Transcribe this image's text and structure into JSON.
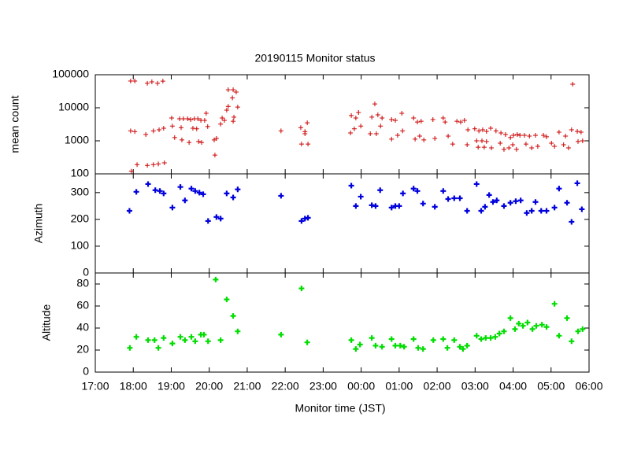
{
  "chart_data": [
    {
      "type": "scatter",
      "title": "20190115 Monitor status",
      "ylabel": "mean count",
      "log_y": true,
      "xlim": [
        17,
        30
      ],
      "ylim": [
        100,
        100000
      ],
      "yticks": [
        100,
        1000,
        10000,
        100000
      ],
      "series": [
        {
          "color": "#cc0000",
          "x": [
            17.93,
            18.04,
            17.93,
            18.04,
            17.95,
            18.1,
            18.37,
            18.49,
            18.64,
            18.78,
            18.37,
            18.53,
            18.66,
            18.82,
            18.33,
            18.53,
            18.68,
            18.8,
            19.01,
            19.03,
            19.09,
            19.22,
            19.32,
            19.43,
            19.26,
            19.28,
            19.51,
            19.61,
            19.7,
            19.78,
            19.88,
            19.92,
            19.47,
            19.72,
            19.8,
            19.57,
            19.67,
            19.96,
            20.13,
            20.19,
            20.15,
            20.3,
            20.4,
            20.5,
            20.63,
            20.34,
            20.5,
            20.46,
            20.61,
            20.71,
            20.75,
            20.65,
            20.63,
            21.89,
            22.41,
            22.52,
            22.43,
            22.6,
            22.58,
            22.52,
            23.74,
            23.86,
            23.93,
            23.99,
            23.72,
            23.82,
            24.28,
            24.36,
            24.44,
            24.55,
            24.24,
            24.4,
            24.51,
            24.8,
            24.9,
            24.8,
            24.96,
            25.07,
            25.09,
            25.38,
            25.48,
            25.58,
            25.42,
            25.54,
            25.65,
            25.89,
            25.94,
            26.16,
            26.21,
            26.29,
            26.41,
            26.52,
            26.62,
            26.72,
            26.81,
            26.79,
            26.99,
            27.1,
            27.2,
            27.3,
            27.41,
            27.04,
            27.18,
            27.3,
            27.08,
            27.24,
            27.43,
            27.55,
            27.68,
            27.8,
            27.93,
            27.66,
            27.76,
            27.89,
            28.01,
            28.11,
            28.18,
            27.99,
            28.09,
            28.3,
            28.43,
            28.59,
            28.34,
            28.49,
            28.65,
            28.8,
            28.88,
            29.01,
            29.09,
            29.21,
            29.33,
            29.46,
            29.38,
            29.57,
            29.54,
            29.69,
            29.79,
            29.83,
            29.71
          ],
          "values": [
            64500,
            64500,
            2000,
            1900,
            120,
            190,
            55000,
            61000,
            55000,
            64000,
            180,
            190,
            200,
            215,
            1550,
            2000,
            2150,
            2400,
            4900,
            2800,
            1250,
            4650,
            4650,
            4650,
            2500,
            1060,
            4400,
            4650,
            4650,
            4150,
            4150,
            6800,
            890,
            950,
            890,
            2400,
            2300,
            2700,
            1060,
            1180,
            370,
            3200,
            4150,
            35000,
            35000,
            4900,
            11000,
            8500,
            20000,
            30000,
            10500,
            5200,
            3900,
            2000,
            2500,
            1900,
            800,
            800,
            3500,
            1640,
            5800,
            4900,
            7200,
            2800,
            1730,
            2300,
            5200,
            13100,
            6100,
            4900,
            1640,
            1640,
            2800,
            4400,
            4150,
            1120,
            1470,
            6800,
            2000,
            4900,
            3700,
            3900,
            1120,
            1390,
            1060,
            4400,
            1180,
            4900,
            3700,
            1390,
            800,
            3900,
            3700,
            4150,
            2150,
            760,
            2300,
            2000,
            2150,
            1930,
            2400,
            1000,
            1000,
            950,
            640,
            640,
            610,
            2000,
            1730,
            1550,
            1250,
            850,
            550,
            610,
            1470,
            1550,
            1470,
            760,
            550,
            1470,
            1390,
            1470,
            800,
            610,
            680,
            1470,
            1320,
            850,
            680,
            1830,
            760,
            610,
            1390,
            51700,
            2150,
            1930,
            1830,
            1000,
            950
          ]
        }
      ]
    },
    {
      "type": "scatter",
      "ylabel": "Azimuth",
      "xlim": [
        17,
        30
      ],
      "ylim": [
        0,
        370
      ],
      "yticks": [
        0,
        100,
        200,
        300
      ],
      "series": [
        {
          "color": "#0000dd",
          "x": [
            17.9,
            18.08,
            18.39,
            18.58,
            18.7,
            18.8,
            19.03,
            19.24,
            19.36,
            19.53,
            19.63,
            19.74,
            19.84,
            19.97,
            20.19,
            20.3,
            20.46,
            20.63,
            20.75,
            21.89,
            22.43,
            22.52,
            22.6,
            23.74,
            23.86,
            23.99,
            24.28,
            24.38,
            24.5,
            24.8,
            24.9,
            25.0,
            25.1,
            25.38,
            25.48,
            25.63,
            25.94,
            26.16,
            26.29,
            26.45,
            26.6,
            26.79,
            27.04,
            27.16,
            27.26,
            27.37,
            27.47,
            27.57,
            27.76,
            27.93,
            28.07,
            28.2,
            28.36,
            28.49,
            28.59,
            28.74,
            28.88,
            29.09,
            29.21,
            29.42,
            29.54,
            29.69,
            29.81
          ],
          "values": [
            232,
            303,
            332,
            309,
            306,
            297,
            244,
            321,
            271,
            315,
            306,
            300,
            294,
            194,
            209,
            203,
            297,
            282,
            312,
            288,
            194,
            203,
            206,
            326,
            250,
            285,
            253,
            250,
            309,
            244,
            250,
            250,
            297,
            315,
            306,
            259,
            247,
            306,
            276,
            279,
            279,
            232,
            332,
            232,
            247,
            291,
            265,
            271,
            250,
            262,
            268,
            271,
            224,
            232,
            265,
            232,
            232,
            244,
            315,
            262,
            191,
            335,
            238
          ]
        }
      ]
    },
    {
      "type": "scatter",
      "ylabel": "Altitude",
      "xlabel": "Monitor time (JST)",
      "xlim": [
        17,
        30
      ],
      "ylim": [
        0,
        90
      ],
      "yticks": [
        0,
        20,
        40,
        60,
        80
      ],
      "xticks": [
        {
          "value": 17,
          "label": "17:00"
        },
        {
          "value": 18,
          "label": "18:00"
        },
        {
          "value": 19,
          "label": "19:00"
        },
        {
          "value": 20,
          "label": "20:00"
        },
        {
          "value": 21,
          "label": "21:00"
        },
        {
          "value": 22,
          "label": "22:00"
        },
        {
          "value": 23,
          "label": "23:00"
        },
        {
          "value": 24,
          "label": "00:00"
        },
        {
          "value": 25,
          "label": "01:00"
        },
        {
          "value": 26,
          "label": "02:00"
        },
        {
          "value": 27,
          "label": "03:00"
        },
        {
          "value": 28,
          "label": "04:00"
        },
        {
          "value": 29,
          "label": "05:00"
        },
        {
          "value": 30,
          "label": "06:00"
        }
      ],
      "series": [
        {
          "color": "#00dd00",
          "x": [
            17.91,
            18.08,
            18.39,
            18.56,
            18.66,
            18.8,
            19.03,
            19.24,
            19.36,
            19.53,
            19.63,
            19.78,
            19.86,
            19.97,
            20.17,
            20.3,
            20.46,
            20.63,
            20.75,
            21.89,
            22.43,
            22.58,
            23.74,
            23.86,
            23.97,
            24.28,
            24.38,
            24.55,
            24.8,
            24.9,
            25.03,
            25.13,
            25.38,
            25.5,
            25.63,
            25.9,
            26.16,
            26.27,
            26.45,
            26.6,
            26.68,
            26.79,
            27.04,
            27.16,
            27.28,
            27.41,
            27.53,
            27.64,
            27.76,
            27.93,
            28.05,
            28.15,
            28.26,
            28.38,
            28.51,
            28.61,
            28.76,
            28.88,
            29.09,
            29.21,
            29.42,
            29.54,
            29.71,
            29.83
          ],
          "values": [
            22,
            32,
            29,
            29,
            22,
            31,
            26,
            32,
            29,
            32,
            28,
            34,
            34,
            28,
            84,
            29,
            66,
            51,
            37,
            34,
            76,
            27,
            29,
            21,
            25,
            31,
            24,
            23,
            30,
            24,
            24,
            23,
            30,
            22,
            21,
            29,
            30,
            22,
            29,
            23,
            21,
            24,
            33,
            30,
            31,
            31,
            32,
            35,
            37,
            49,
            39,
            44,
            42,
            45,
            39,
            42,
            43,
            41,
            62,
            33,
            49,
            28,
            37,
            39
          ]
        }
      ]
    }
  ]
}
